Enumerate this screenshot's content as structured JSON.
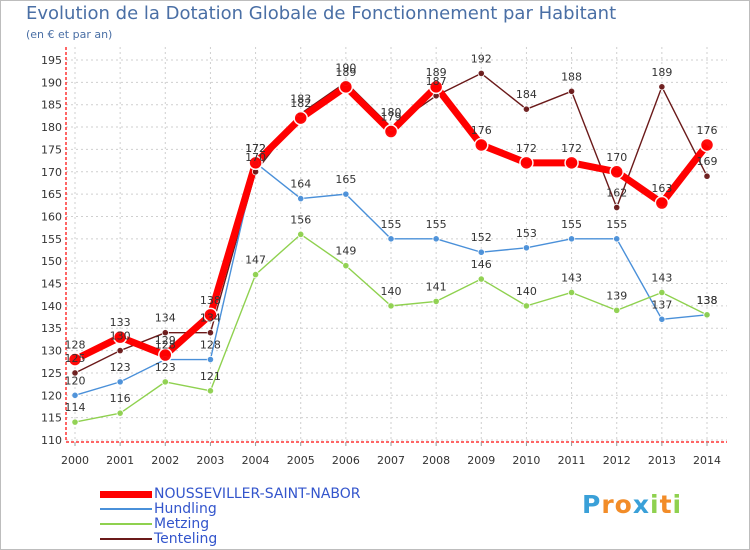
{
  "chart_data": {
    "type": "line",
    "title": "Evolution de la Dotation Globale de Fonctionnement par Habitant",
    "subtitle": "(en € et par an)",
    "xlabel": "",
    "ylabel": "",
    "ylim": [
      110,
      195
    ],
    "y_ticks": [
      110,
      115,
      120,
      125,
      130,
      135,
      140,
      145,
      150,
      155,
      160,
      165,
      170,
      175,
      180,
      185,
      190,
      195
    ],
    "categories": [
      "2000",
      "2001",
      "2002",
      "2003",
      "2004",
      "2005",
      "2006",
      "2007",
      "2008",
      "2009",
      "2010",
      "2011",
      "2012",
      "2013",
      "2014"
    ],
    "grid": true,
    "series": [
      {
        "name": "NOUSSEVILLER-SAINT-NABOR",
        "color": "#ff0000",
        "values": [
          128,
          133,
          129,
          138,
          172,
          182,
          189,
          179,
          189,
          176,
          172,
          172,
          170,
          163,
          176
        ],
        "labels": [
          "128",
          "133",
          "129",
          "138",
          "172",
          "182",
          "189",
          "179",
          "189",
          "176",
          "172",
          "172",
          "170",
          "163",
          "176"
        ]
      },
      {
        "name": "Hundling",
        "color": "#4a90d9",
        "values": [
          120,
          123,
          128,
          128,
          172,
          164,
          165,
          155,
          155,
          152,
          153,
          155,
          155,
          137,
          138
        ],
        "labels": [
          "120",
          "123",
          "128",
          "128",
          "172",
          "164",
          "165",
          "155",
          "155",
          "152",
          "153",
          "155",
          "155",
          "137",
          "138"
        ]
      },
      {
        "name": "Metzing",
        "color": "#8fd14f",
        "values": [
          114,
          116,
          123,
          121,
          147,
          156,
          149,
          140,
          141,
          146,
          140,
          143,
          139,
          143,
          138
        ],
        "labels": [
          "114",
          "116",
          "123",
          "121",
          "147",
          "156",
          "149",
          "140",
          "141",
          "146",
          "140",
          "143",
          "139",
          "143",
          "138"
        ]
      },
      {
        "name": "Tenteling",
        "color": "#6b1a1a",
        "values": [
          125,
          130,
          134,
          134,
          170,
          183,
          190,
          180,
          187,
          192,
          184,
          188,
          162,
          189,
          169
        ],
        "labels": [
          "125",
          "130",
          "134",
          "134",
          "170",
          "183",
          "190",
          "180",
          "187",
          "192",
          "184",
          "188",
          "162",
          "189",
          "169"
        ]
      }
    ]
  },
  "logo": {
    "text": "Proxiti",
    "letters": [
      "P",
      "r",
      "o",
      "x",
      "i",
      "t",
      "i"
    ],
    "colors": [
      "#3aa0d8",
      "#f28c28",
      "#f28c28",
      "#3aa0d8",
      "#8fd14f",
      "#f28c28",
      "#8fd14f"
    ]
  }
}
